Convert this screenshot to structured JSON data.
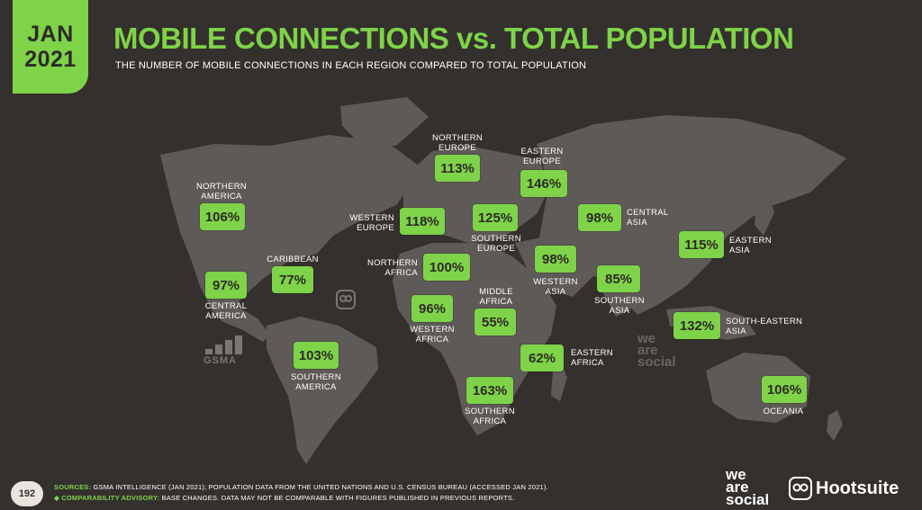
{
  "badge": {
    "line1": "JAN",
    "line2": "2021"
  },
  "header": {
    "title": "MOBILE CONNECTIONS vs. TOTAL POPULATION",
    "subtitle": "THE NUMBER OF MOBILE CONNECTIONS IN EACH REGION COMPARED TO TOTAL POPULATION"
  },
  "colors": {
    "accent": "#7ed348",
    "background": "#34302d",
    "land": "#5e5a57"
  },
  "regions": [
    {
      "name": "NORTHERN\nAMERICA",
      "value": "106%"
    },
    {
      "name": "CARIBBEAN",
      "value": "77%"
    },
    {
      "name": "CENTRAL\nAMERICA",
      "value": "97%"
    },
    {
      "name": "SOUTHERN\nAMERICA",
      "value": "103%"
    },
    {
      "name": "NORTHERN\nEUROPE",
      "value": "113%"
    },
    {
      "name": "WESTERN\nEUROPE",
      "value": "118%"
    },
    {
      "name": "SOUTHERN\nEUROPE",
      "value": "125%"
    },
    {
      "name": "EASTERN\nEUROPE",
      "value": "146%"
    },
    {
      "name": "NORTHERN\nAFRICA",
      "value": "100%"
    },
    {
      "name": "WESTERN\nAFRICA",
      "value": "96%"
    },
    {
      "name": "MIDDLE\nAFRICA",
      "value": "55%"
    },
    {
      "name": "EASTERN\nAFRICA",
      "value": "62%"
    },
    {
      "name": "SOUTHERN\nAFRICA",
      "value": "163%"
    },
    {
      "name": "WESTERN\nASIA",
      "value": "98%"
    },
    {
      "name": "CENTRAL\nASIA",
      "value": "98%"
    },
    {
      "name": "SOUTHERN\nASIA",
      "value": "85%"
    },
    {
      "name": "EASTERN\nASIA",
      "value": "115%"
    },
    {
      "name": "SOUTH-EASTERN\nASIA",
      "value": "132%"
    },
    {
      "name": "OCEANIA",
      "value": "106%"
    }
  ],
  "watermarks": {
    "gsma": "GSMA",
    "we_are_social": "we\nare\nsocial"
  },
  "footer": {
    "page_number": "192",
    "sources_label": "SOURCES:",
    "sources_text": " GSMA INTELLIGENCE (JAN 2021); POPULATION DATA FROM THE UNITED NATIONS AND U.S. CENSUS BUREAU (ACCESSED JAN 2021).",
    "advisory_label": "◆ COMPARABILITY ADVISORY:",
    "advisory_text": " BASE CHANGES. DATA MAY NOT BE COMPARABLE WITH FIGURES PUBLISHED IN PREVIOUS REPORTS.",
    "brand_wearesocial": "we\nare\nsocial",
    "brand_hootsuite": "Hootsuite"
  }
}
